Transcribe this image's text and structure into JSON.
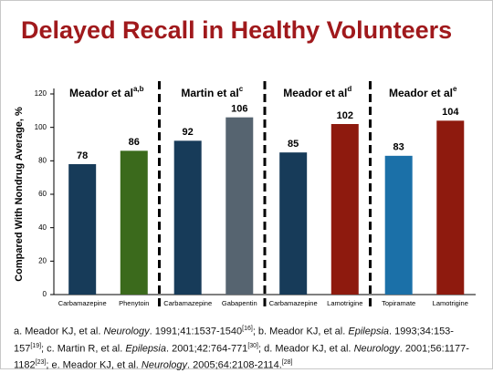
{
  "chart_data": {
    "type": "bar",
    "title": "Delayed Recall in Healthy Volunteers",
    "y_label": "Compared With Nondrug Average, %",
    "ylim": [
      0,
      120
    ],
    "yticks": [
      0,
      20,
      40,
      60,
      80,
      100,
      120
    ],
    "panels": [
      {
        "title": "Meador et al",
        "sup": "a,b",
        "categories": [
          "Carbamazepine",
          "Phenytoin"
        ],
        "values": [
          78,
          86
        ],
        "colors": [
          "#173b59",
          "#3b6a1c"
        ]
      },
      {
        "title": "Martin et al",
        "sup": "c",
        "categories": [
          "Carbamazepine",
          "Gabapentin"
        ],
        "values": [
          92,
          106
        ],
        "colors": [
          "#173b59",
          "#566470"
        ]
      },
      {
        "title": "Meador et al",
        "sup": "d",
        "categories": [
          "Carbamazepine",
          "Lamotrigine"
        ],
        "values": [
          85,
          102
        ],
        "colors": [
          "#173b59",
          "#8e1a0e"
        ]
      },
      {
        "title": "Meador et al",
        "sup": "e",
        "categories": [
          "Topiramate",
          "Lamotrigine"
        ],
        "values": [
          83,
          104
        ],
        "colors": [
          "#1b70a8",
          "#8e1a0e"
        ]
      }
    ]
  },
  "footnote": [
    {
      "text": "a. Meador KJ, et al. "
    },
    {
      "text": "Neurology",
      "italic": true
    },
    {
      "text": ". 1991;41:1537-1540"
    },
    {
      "text": "[16]",
      "sup": true
    },
    {
      "text": "; b. Meador KJ, et al. "
    },
    {
      "text": "Epilepsia",
      "italic": true
    },
    {
      "text": ". 1993;34:153-157"
    },
    {
      "text": "[19]",
      "sup": true
    },
    {
      "text": "; c. Martin R, et al. "
    },
    {
      "text": "Epilepsia",
      "italic": true
    },
    {
      "text": ". 2001;42:764-771"
    },
    {
      "text": "[30]",
      "sup": true
    },
    {
      "text": "; d. Meador KJ, et al. "
    },
    {
      "text": "Neurology",
      "italic": true
    },
    {
      "text": ". 2001;56:1177-1182"
    },
    {
      "text": "[23]",
      "sup": true
    },
    {
      "text": "; e. Meador KJ, et al. "
    },
    {
      "text": "Neurology",
      "italic": true
    },
    {
      "text": ". 2005;64:2108-2114."
    },
    {
      "text": "[28]",
      "sup": true
    }
  ]
}
